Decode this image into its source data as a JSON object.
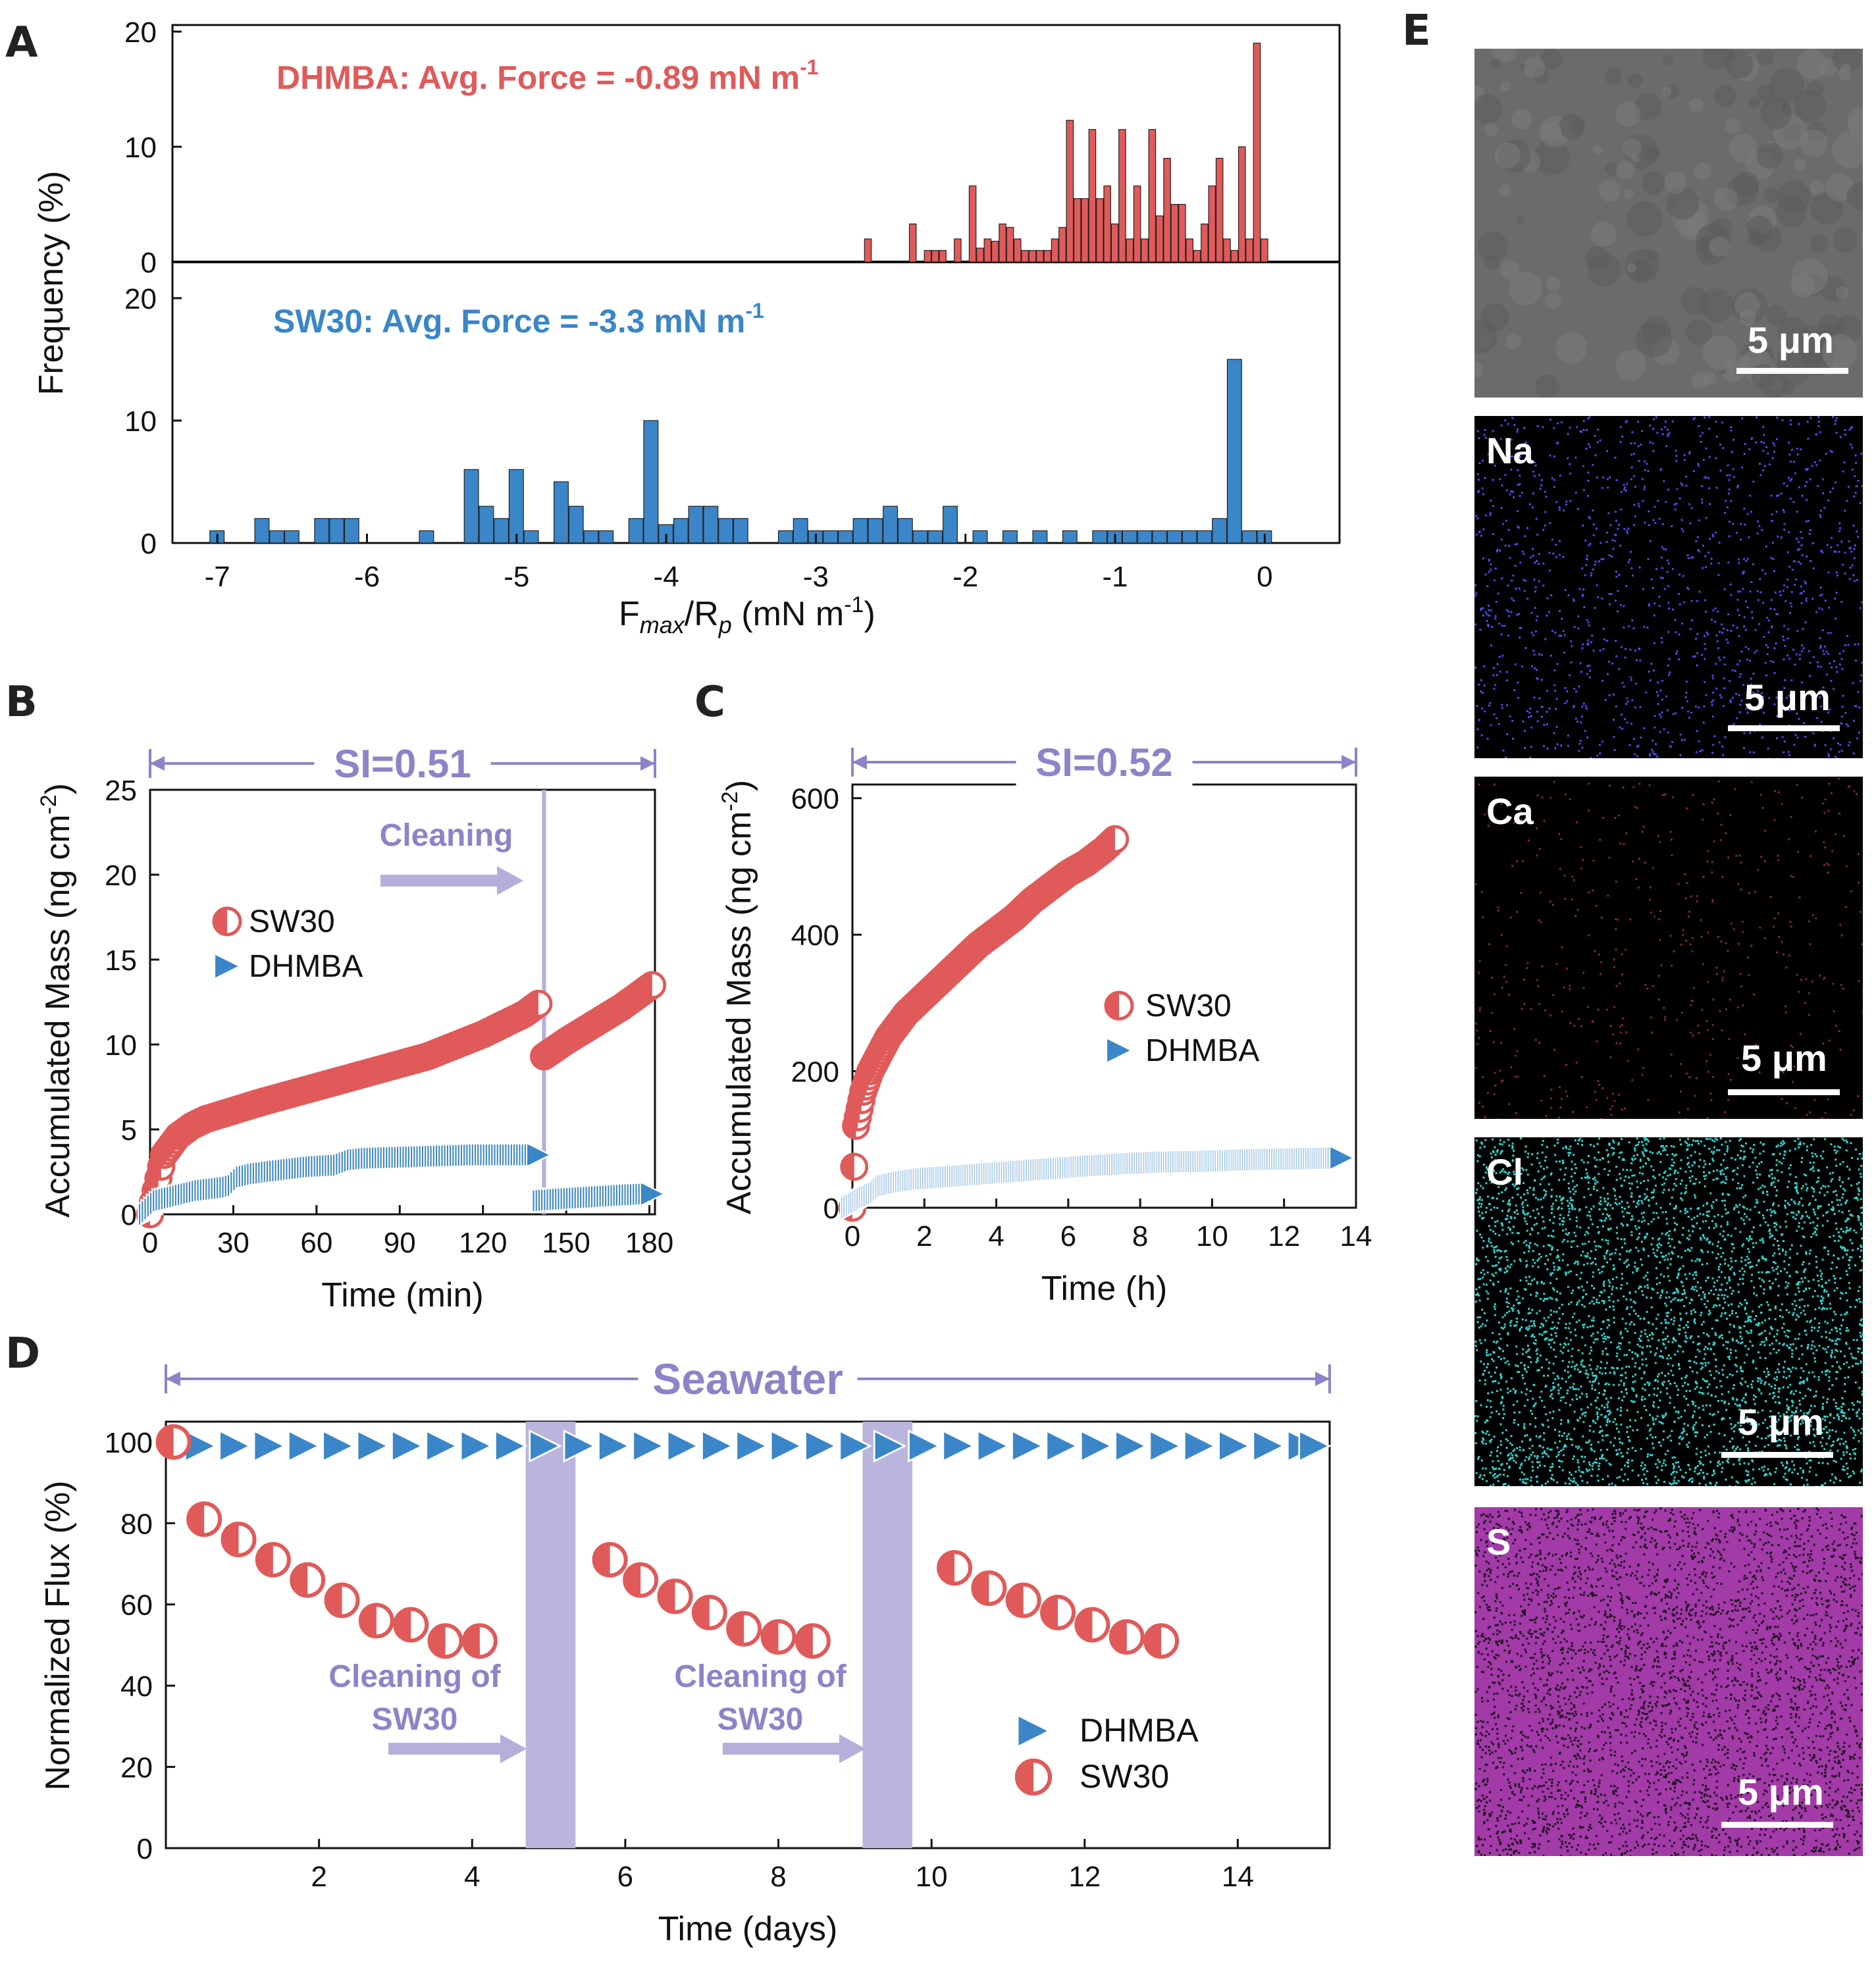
{
  "panel_letters": {
    "A": "A",
    "B": "B",
    "C": "C",
    "D": "D",
    "E": "E"
  },
  "chart_data": [
    {
      "id": "A",
      "type": "bar",
      "xlabel_main": "F",
      "xlabel_sub1": "max",
      "xlabel_mid": "/R",
      "xlabel_sub2": "p",
      "xlabel_unit": " (mN m",
      "xlabel_unit_sup": "-1",
      "xlabel_close": ")",
      "ylabel": "Frequency  (%)",
      "xlim": [
        -7.3,
        0.5
      ],
      "xticks": [
        "-7",
        "-6",
        "-5",
        "-4",
        "-3",
        "-2",
        "-1",
        "0"
      ],
      "series": [
        {
          "name": "DHMBA",
          "annotation": "DHMBA: Avg. Force = -0.89 mN m",
          "annotation_sup": "-1",
          "color": "#e05a5a",
          "ylim": [
            0,
            20
          ],
          "yticks": [
            "0",
            "10",
            "20"
          ],
          "bin_width": 0.05,
          "centers": [
            -2.65,
            -2.35,
            -2.25,
            -2.2,
            -2.15,
            -2.05,
            -1.95,
            -1.9,
            -1.85,
            -1.8,
            -1.75,
            -1.7,
            -1.65,
            -1.6,
            -1.55,
            -1.5,
            -1.45,
            -1.4,
            -1.35,
            -1.3,
            -1.25,
            -1.2,
            -1.15,
            -1.1,
            -1.05,
            -1.0,
            -0.95,
            -0.9,
            -0.85,
            -0.8,
            -0.75,
            -0.7,
            -0.65,
            -0.6,
            -0.55,
            -0.5,
            -0.45,
            -0.4,
            -0.35,
            -0.3,
            -0.25,
            -0.2,
            -0.15,
            -0.1,
            -0.05,
            0.0
          ],
          "values": [
            2,
            3.3,
            1,
            1,
            1,
            2,
            6.6,
            1.2,
            2,
            1.8,
            3.3,
            3,
            2,
            1,
            1,
            1,
            1,
            2,
            3,
            12.3,
            5.5,
            5.5,
            11.5,
            5.5,
            6.6,
            3.3,
            11.5,
            2,
            6.6,
            2,
            11.5,
            4,
            9,
            5,
            5,
            2,
            1,
            3.3,
            6.6,
            9,
            2,
            1,
            10,
            2,
            19,
            2
          ]
        },
        {
          "name": "SW30",
          "annotation": "SW30: Avg. Force = -3.3 mN m",
          "annotation_sup": "-1",
          "color": "#3a86c8",
          "ylim": [
            0,
            20
          ],
          "yticks": [
            "0",
            "10",
            "20"
          ],
          "bin_width": 0.1,
          "centers": [
            -7.0,
            -6.7,
            -6.6,
            -6.5,
            -6.3,
            -6.2,
            -6.1,
            -5.6,
            -5.3,
            -5.2,
            -5.1,
            -5.0,
            -4.9,
            -4.7,
            -4.6,
            -4.5,
            -4.4,
            -4.2,
            -4.1,
            -4.0,
            -3.9,
            -3.8,
            -3.7,
            -3.6,
            -3.5,
            -3.2,
            -3.1,
            -3.0,
            -2.9,
            -2.8,
            -2.7,
            -2.6,
            -2.5,
            -2.4,
            -2.3,
            -2.2,
            -2.1,
            -1.9,
            -1.7,
            -1.5,
            -1.3,
            -1.1,
            -1.0,
            -0.9,
            -0.8,
            -0.7,
            -0.6,
            -0.5,
            -0.4,
            -0.3,
            -0.2,
            -0.1,
            0.0
          ],
          "values": [
            1,
            2,
            1,
            1,
            2,
            2,
            2,
            1,
            6,
            3,
            2,
            6,
            1,
            5,
            3,
            1,
            1,
            2,
            10,
            1.5,
            2,
            3,
            3,
            2,
            2,
            1,
            2,
            1,
            1,
            1,
            2,
            2,
            3,
            2,
            1,
            1,
            3,
            1,
            1,
            1,
            1,
            1,
            1,
            1,
            1,
            1,
            1,
            1,
            1,
            2,
            15,
            1,
            1
          ]
        }
      ]
    },
    {
      "id": "B",
      "type": "scatter",
      "xlabel": "Time (min)",
      "ylabel_main": "Accumulated Mass (ng cm",
      "ylabel_sup": "-2",
      "ylabel_close": ")",
      "xlim": [
        0,
        182
      ],
      "ylim": [
        0,
        25
      ],
      "xticks": [
        "0",
        "30",
        "60",
        "90",
        "120",
        "150",
        "180"
      ],
      "yticks": [
        "0",
        "5",
        "10",
        "15",
        "20",
        "25"
      ],
      "span_label": "SI=0.51",
      "cleaning_label": "Cleaning",
      "cleaning_time": 140,
      "legend": [
        "SW30",
        "DHMBA"
      ],
      "series": [
        {
          "name": "SW30",
          "color": "#e05a5a",
          "segments": [
            {
              "x": [
                0,
                5,
                10,
                15,
                20,
                30,
                40,
                60,
                80,
                100,
                120,
                135,
                140
              ],
              "y": [
                0,
                3.5,
                4.6,
                5.2,
                5.6,
                6.1,
                6.6,
                7.5,
                8.4,
                9.3,
                10.6,
                11.8,
                12.4
              ]
            },
            {
              "x": [
                142,
                150,
                160,
                170,
                181
              ],
              "y": [
                9.3,
                10.2,
                11.2,
                12.2,
                13.5
              ]
            }
          ]
        },
        {
          "name": "DHMBA",
          "color": "#3a86c8",
          "segments": [
            {
              "x": [
                0,
                5,
                10,
                15,
                20,
                25,
                30,
                32,
                35,
                40,
                50,
                60,
                70,
                75,
                80,
                100,
                120,
                140
              ],
              "y": [
                0,
                0.8,
                1.0,
                1.2,
                1.4,
                1.5,
                1.6,
                1.7,
                2.2,
                2.4,
                2.6,
                2.8,
                2.9,
                3.2,
                3.3,
                3.4,
                3.5,
                3.5
              ]
            },
            {
              "x": [
                142,
                150,
                160,
                170,
                181
              ],
              "y": [
                0.8,
                0.9,
                1.0,
                1.1,
                1.2
              ]
            }
          ]
        }
      ]
    },
    {
      "id": "C",
      "type": "scatter",
      "xlabel": "Time (h)",
      "ylabel_main": "Accumulated Mass (ng cm",
      "ylabel_sup": "-2",
      "ylabel_close": ")",
      "xlim": [
        0,
        14
      ],
      "ylim": [
        0,
        620
      ],
      "xticks": [
        "0",
        "2",
        "4",
        "6",
        "8",
        "10",
        "12",
        "14"
      ],
      "yticks": [
        "0",
        "200",
        "400",
        "600"
      ],
      "span_label": "SI=0.52",
      "legend": [
        "SW30",
        "DHMBA"
      ],
      "series": [
        {
          "name": "SW30",
          "color": "#e05a5a",
          "x": [
            0,
            0.1,
            0.3,
            0.5,
            0.75,
            1,
            1.5,
            2,
            2.5,
            3,
            3.5,
            4,
            4.5,
            5,
            5.5,
            6,
            6.5,
            7,
            7.3
          ],
          "y": [
            0,
            120,
            170,
            200,
            225,
            250,
            285,
            310,
            335,
            360,
            385,
            405,
            425,
            450,
            470,
            490,
            505,
            525,
            540
          ]
        },
        {
          "name": "DHMBA",
          "color": "#3a86c8",
          "x": [
            0,
            0.5,
            0.8,
            1,
            1.5,
            2,
            3,
            4,
            5,
            6,
            7,
            8,
            9,
            10,
            11,
            12,
            13,
            13.6
          ],
          "y": [
            0,
            15,
            22,
            32,
            38,
            42,
            46,
            50,
            54,
            58,
            62,
            65,
            67,
            68,
            70,
            71,
            72,
            73
          ]
        }
      ]
    },
    {
      "id": "D",
      "type": "scatter",
      "xlabel": "Time (days)",
      "ylabel": "Normalized Flux (%)",
      "xlim": [
        0,
        15.2
      ],
      "ylim": [
        0,
        105
      ],
      "xticks": [
        "2",
        "4",
        "6",
        "8",
        "10",
        "12",
        "14"
      ],
      "yticks": [
        "0",
        "20",
        "40",
        "60",
        "80",
        "100"
      ],
      "span_label": "Seawater",
      "cleaning_label_1": "Cleaning of",
      "cleaning_label_2": "SW30",
      "cleaning_bands": [
        [
          4.7,
          5.35
        ],
        [
          9.1,
          9.75
        ]
      ],
      "legend": [
        "DHMBA",
        "SW30"
      ],
      "series": [
        {
          "name": "DHMBA",
          "color": "#3a86c8",
          "x": [
            0.45,
            0.9,
            1.35,
            1.8,
            2.25,
            2.7,
            3.15,
            3.6,
            4.05,
            4.5,
            4.95,
            5.4,
            5.85,
            6.3,
            6.75,
            7.2,
            7.65,
            8.1,
            8.55,
            9.0,
            9.45,
            9.9,
            10.35,
            10.8,
            11.25,
            11.7,
            12.15,
            12.6,
            13.05,
            13.5,
            13.95,
            14.4,
            14.85,
            15.0
          ],
          "y": [
            99,
            99,
            99,
            99,
            99,
            99,
            99,
            99,
            99,
            99,
            99,
            99,
            99,
            99,
            99,
            99,
            99,
            99,
            99,
            99,
            99,
            99,
            99,
            99,
            99,
            99,
            99,
            99,
            99,
            99,
            99,
            99,
            99,
            99
          ]
        },
        {
          "name": "SW30",
          "color": "#e05a5a",
          "x": [
            0.1,
            0.5,
            0.95,
            1.4,
            1.85,
            2.3,
            2.75,
            3.2,
            3.65,
            4.1,
            5.8,
            6.2,
            6.65,
            7.1,
            7.55,
            8.0,
            8.45,
            10.3,
            10.75,
            11.2,
            11.65,
            12.1,
            12.55,
            13.0
          ],
          "y": [
            100,
            81,
            76,
            71,
            66,
            61,
            56,
            55,
            51,
            51,
            71,
            66,
            62,
            58,
            54,
            52,
            51,
            69,
            64,
            61,
            58,
            55,
            52,
            51
          ]
        }
      ]
    }
  ],
  "panel_E": {
    "scale_text": "5 μm",
    "maps": [
      {
        "label": "",
        "color": "#6e6e6e",
        "kind": "sem"
      },
      {
        "label": "Na",
        "color": "#4a4af0",
        "kind": "map",
        "density": 1400
      },
      {
        "label": "Ca",
        "color": "#7a2a2a",
        "kind": "map",
        "density": 500
      },
      {
        "label": "Cl",
        "color": "#2ad6cf",
        "kind": "map",
        "density": 4200
      },
      {
        "label": "S",
        "color": "#b23ab8",
        "kind": "mapdense",
        "density": 0
      }
    ]
  }
}
